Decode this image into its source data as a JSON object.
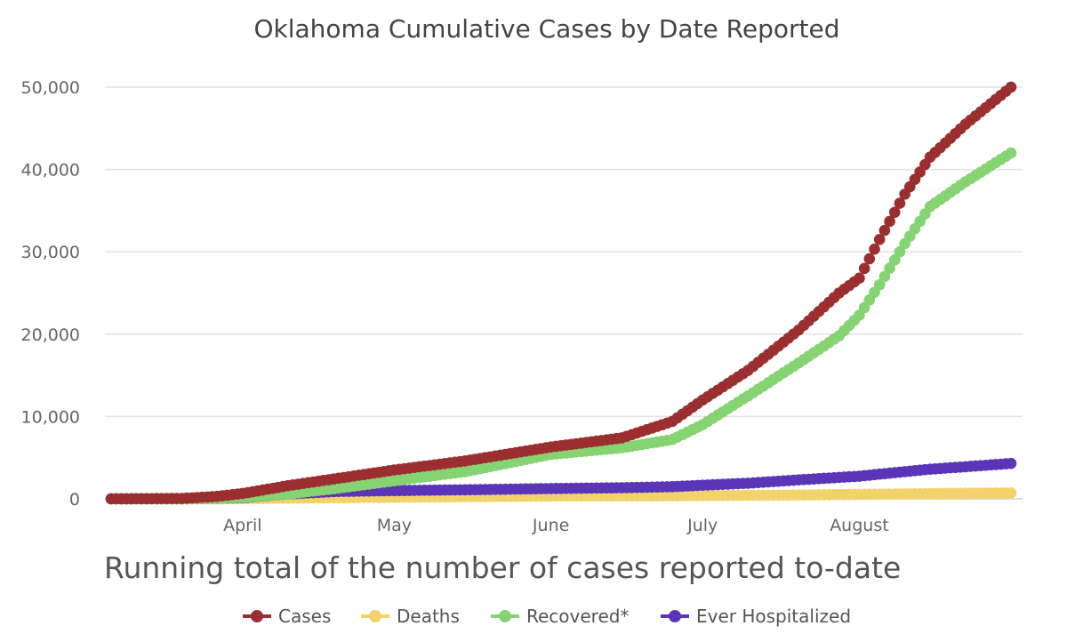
{
  "chart_data": {
    "type": "line",
    "title": "Oklahoma Cumulative Cases by Date Reported",
    "subtitle": "Running total of the number of cases reported to-date",
    "xlabel": "",
    "ylabel": "",
    "x_ticks": [
      "April",
      "May",
      "June",
      "July",
      "August"
    ],
    "y_ticks": [
      0,
      10000,
      20000,
      30000,
      40000,
      50000
    ],
    "y_tick_labels": [
      "0",
      "10,000",
      "20,000",
      "30,000",
      "40,000",
      "50,000"
    ],
    "ylim": [
      0,
      52000
    ],
    "grid": true,
    "legend_position": "bottom",
    "x_dates": [
      "2020-03-06",
      "2020-03-20",
      "2020-03-27",
      "2020-04-01",
      "2020-04-10",
      "2020-04-20",
      "2020-05-01",
      "2020-05-15",
      "2020-06-01",
      "2020-06-15",
      "2020-06-25",
      "2020-07-01",
      "2020-07-10",
      "2020-07-20",
      "2020-07-28",
      "2020-08-01",
      "2020-08-05",
      "2020-08-10",
      "2020-08-15",
      "2020-08-22",
      "2020-08-31"
    ],
    "series": [
      {
        "name": "Cases",
        "color": "#9b2f2f",
        "values": [
          0,
          50,
          300,
          650,
          1600,
          2500,
          3500,
          4600,
          6300,
          7400,
          9400,
          12000,
          15600,
          20500,
          25000,
          26800,
          31500,
          37000,
          41500,
          45500,
          50000
        ]
      },
      {
        "name": "Deaths",
        "color": "#f2d36b",
        "values": [
          0,
          0,
          5,
          20,
          80,
          130,
          200,
          260,
          340,
          360,
          370,
          390,
          420,
          460,
          520,
          540,
          560,
          600,
          640,
          680,
          720
        ]
      },
      {
        "name": "Recovered*",
        "color": "#86d373",
        "values": [
          0,
          0,
          50,
          200,
          600,
          1300,
          2200,
          3300,
          5400,
          6200,
          7200,
          9000,
          12500,
          16500,
          19800,
          22300,
          26000,
          31000,
          35500,
          38500,
          42000
        ]
      },
      {
        "name": "Ever Hospitalized",
        "color": "#5b35b8",
        "values": [
          0,
          5,
          50,
          150,
          600,
          900,
          1000,
          1100,
          1250,
          1350,
          1480,
          1650,
          1900,
          2300,
          2600,
          2750,
          3000,
          3300,
          3600,
          3900,
          4300
        ]
      }
    ]
  }
}
